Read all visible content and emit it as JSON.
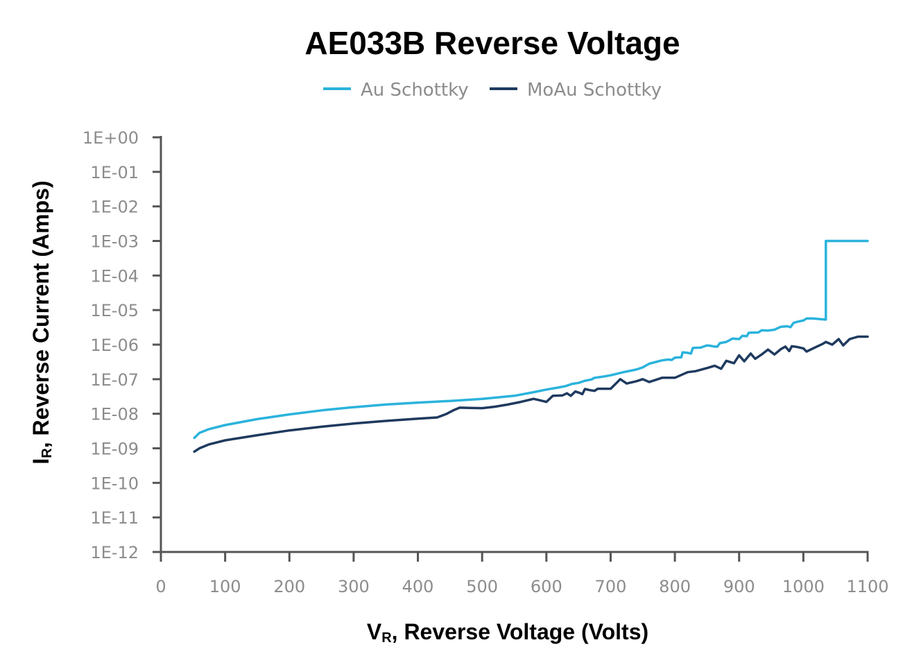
{
  "chart_data": {
    "type": "line",
    "title": "AE033B Reverse Voltage",
    "xlabel": {
      "main": "V",
      "sub": "R",
      "rest": ", Reverse Voltage (Volts)"
    },
    "ylabel": {
      "main": "I",
      "sub": "R",
      "rest": ", Reverse Current (Amps)"
    },
    "xlim": [
      0,
      1100
    ],
    "ylim_exponent": [
      -12,
      0
    ],
    "y_scale": "log",
    "grid": false,
    "legend_position": "top-center",
    "x_ticks": [
      "0",
      "100",
      "200",
      "300",
      "400",
      "500",
      "600",
      "700",
      "800",
      "900",
      "1000",
      "1100"
    ],
    "y_ticks": [
      "1E+00",
      "1E-01",
      "1E-02",
      "1E-03",
      "1E-04",
      "1E-05",
      "1E-06",
      "1E-07",
      "1E-08",
      "1E-09",
      "1E-10",
      "1E-11",
      "1E-12"
    ],
    "series": [
      {
        "name": "Au Schottky",
        "color": "#2bb3dc",
        "points": [
          [
            52,
            2e-09
          ],
          [
            60,
            2.8e-09
          ],
          [
            75,
            3.6e-09
          ],
          [
            100,
            4.7e-09
          ],
          [
            150,
            7e-09
          ],
          [
            200,
            9.6e-09
          ],
          [
            250,
            1.25e-08
          ],
          [
            300,
            1.55e-08
          ],
          [
            350,
            1.85e-08
          ],
          [
            400,
            2.1e-08
          ],
          [
            450,
            2.35e-08
          ],
          [
            500,
            2.7e-08
          ],
          [
            550,
            3.3e-08
          ],
          [
            580,
            4.2e-08
          ],
          [
            600,
            5e-08
          ],
          [
            620,
            5.8e-08
          ],
          [
            630,
            6.3e-08
          ],
          [
            640,
            7.3e-08
          ],
          [
            650,
            7.8e-08
          ],
          [
            660,
            9e-08
          ],
          [
            670,
            9.8e-08
          ],
          [
            675,
            1.1e-07
          ],
          [
            690,
            1.2e-07
          ],
          [
            700,
            1.3e-07
          ],
          [
            720,
            1.6e-07
          ],
          [
            740,
            1.9e-07
          ],
          [
            750,
            2.2e-07
          ],
          [
            760,
            2.8e-07
          ],
          [
            780,
            3.5e-07
          ],
          [
            790,
            3.7e-07
          ],
          [
            795,
            3.6e-07
          ],
          [
            800,
            4.2e-07
          ],
          [
            810,
            4.3e-07
          ],
          [
            812,
            6e-07
          ],
          [
            820,
            5.8e-07
          ],
          [
            825,
            5.5e-07
          ],
          [
            828,
            8e-07
          ],
          [
            840,
            8.2e-07
          ],
          [
            850,
            9.5e-07
          ],
          [
            855,
            9.3e-07
          ],
          [
            862,
            8.8e-07
          ],
          [
            866,
            8.7e-07
          ],
          [
            870,
            1.1e-06
          ],
          [
            880,
            1.2e-06
          ],
          [
            890,
            1.5e-06
          ],
          [
            900,
            1.45e-06
          ],
          [
            905,
            1.8e-06
          ],
          [
            912,
            1.75e-06
          ],
          [
            915,
            2.2e-06
          ],
          [
            930,
            2.25e-06
          ],
          [
            935,
            2.6e-06
          ],
          [
            945,
            2.55e-06
          ],
          [
            955,
            2.7e-06
          ],
          [
            965,
            3.3e-06
          ],
          [
            975,
            3.4e-06
          ],
          [
            980,
            3.2e-06
          ],
          [
            985,
            4.3e-06
          ],
          [
            995,
            4.8e-06
          ],
          [
            1000,
            5e-06
          ],
          [
            1005,
            5.7e-06
          ],
          [
            1015,
            5.7e-06
          ],
          [
            1025,
            5.5e-06
          ],
          [
            1035,
            5.3e-06
          ],
          [
            1035,
            0.001
          ],
          [
            1100,
            0.001
          ]
        ]
      },
      {
        "name": "MoAu Schottky",
        "color": "#1f3a5f",
        "points": [
          [
            52,
            8e-10
          ],
          [
            60,
            1e-09
          ],
          [
            75,
            1.3e-09
          ],
          [
            100,
            1.7e-09
          ],
          [
            150,
            2.4e-09
          ],
          [
            200,
            3.3e-09
          ],
          [
            250,
            4.2e-09
          ],
          [
            300,
            5.2e-09
          ],
          [
            350,
            6.2e-09
          ],
          [
            400,
            7.2e-09
          ],
          [
            430,
            7.8e-09
          ],
          [
            445,
            1e-08
          ],
          [
            455,
            1.25e-08
          ],
          [
            465,
            1.5e-08
          ],
          [
            480,
            1.48e-08
          ],
          [
            500,
            1.45e-08
          ],
          [
            520,
            1.6e-08
          ],
          [
            540,
            1.85e-08
          ],
          [
            560,
            2.2e-08
          ],
          [
            580,
            2.7e-08
          ],
          [
            590,
            2.45e-08
          ],
          [
            600,
            2.2e-08
          ],
          [
            610,
            3.3e-08
          ],
          [
            625,
            3.4e-08
          ],
          [
            632,
            3.9e-08
          ],
          [
            638,
            3.3e-08
          ],
          [
            645,
            4.4e-08
          ],
          [
            652,
            4e-08
          ],
          [
            656,
            3.7e-08
          ],
          [
            660,
            5.2e-08
          ],
          [
            668,
            4.8e-08
          ],
          [
            675,
            4.6e-08
          ],
          [
            680,
            5.3e-08
          ],
          [
            700,
            5.3e-08
          ],
          [
            715,
            1e-07
          ],
          [
            725,
            7.5e-08
          ],
          [
            740,
            8.7e-08
          ],
          [
            750,
            1e-07
          ],
          [
            760,
            8.3e-08
          ],
          [
            780,
            1.1e-07
          ],
          [
            800,
            1.1e-07
          ],
          [
            820,
            1.6e-07
          ],
          [
            832,
            1.7e-07
          ],
          [
            850,
            2.1e-07
          ],
          [
            862,
            2.45e-07
          ],
          [
            872,
            2e-07
          ],
          [
            880,
            3.4e-07
          ],
          [
            892,
            2.9e-07
          ],
          [
            900,
            4.9e-07
          ],
          [
            908,
            3.3e-07
          ],
          [
            918,
            5.5e-07
          ],
          [
            925,
            3.9e-07
          ],
          [
            935,
            5.2e-07
          ],
          [
            945,
            7.2e-07
          ],
          [
            955,
            5.2e-07
          ],
          [
            965,
            7.4e-07
          ],
          [
            972,
            8.8e-07
          ],
          [
            978,
            6.5e-07
          ],
          [
            982,
            9e-07
          ],
          [
            990,
            8.6e-07
          ],
          [
            1000,
            7.8e-07
          ],
          [
            1005,
            6.3e-07
          ],
          [
            1015,
            7.8e-07
          ],
          [
            1030,
            1.05e-06
          ],
          [
            1035,
            1.2e-06
          ],
          [
            1045,
            1e-06
          ],
          [
            1055,
            1.45e-06
          ],
          [
            1062,
            9.5e-07
          ],
          [
            1072,
            1.45e-06
          ],
          [
            1085,
            1.7e-06
          ],
          [
            1100,
            1.7e-06
          ]
        ]
      }
    ]
  }
}
